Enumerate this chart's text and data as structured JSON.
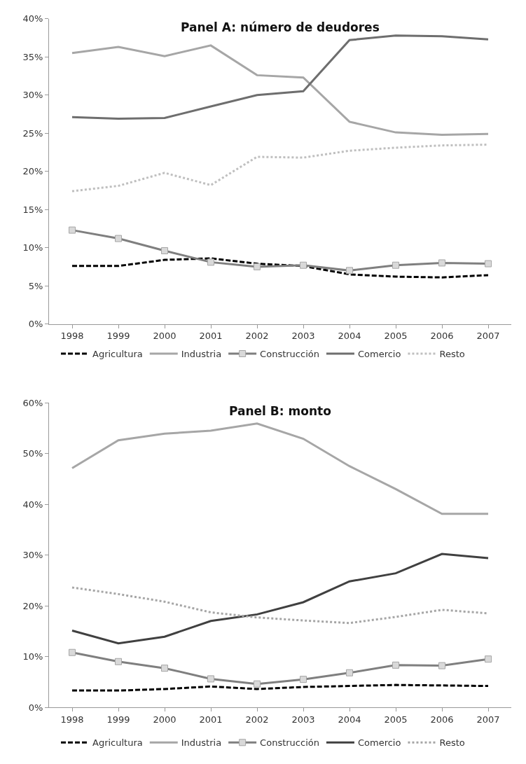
{
  "chart_data": [
    {
      "type": "line",
      "title": "Panel A: número de deudores",
      "categories": [
        "1998",
        "1999",
        "2000",
        "2001",
        "2002",
        "2003",
        "2004",
        "2005",
        "2006",
        "2007"
      ],
      "ylim": [
        0,
        40
      ],
      "yticks": [
        {
          "value": 0,
          "label": "0%"
        },
        {
          "value": 5,
          "label": "5%"
        },
        {
          "value": 10,
          "label": "10%"
        },
        {
          "value": 15,
          "label": "15%"
        },
        {
          "value": 20,
          "label": "20%"
        },
        {
          "value": 25,
          "label": "25%"
        },
        {
          "value": 30,
          "label": "30%"
        },
        {
          "value": 35,
          "label": "35%"
        },
        {
          "value": 40,
          "label": "40%"
        }
      ],
      "legend": "bottom",
      "series": [
        {
          "name": "Agricultura",
          "color": "#000000",
          "line_style": "dashed",
          "values": [
            7.6,
            7.6,
            8.4,
            8.6,
            7.9,
            7.6,
            6.5,
            6.2,
            6.1,
            6.4
          ]
        },
        {
          "name": "Industria",
          "color": "#a6a6a6",
          "line_style": "solid",
          "values": [
            35.5,
            36.3,
            35.1,
            36.5,
            32.6,
            32.3,
            26.5,
            25.1,
            24.8,
            24.9
          ]
        },
        {
          "name": "Construcción",
          "color": "#7f7f7f",
          "line_style": "solid",
          "marker": "square",
          "values": [
            12.3,
            11.2,
            9.6,
            8.1,
            7.5,
            7.7,
            7.0,
            7.7,
            8.0,
            7.9
          ]
        },
        {
          "name": "Comercio",
          "color": "#6e6e6e",
          "line_style": "solid",
          "values": [
            27.1,
            26.9,
            27.0,
            28.5,
            30.0,
            30.5,
            37.2,
            37.8,
            37.7,
            37.3
          ]
        },
        {
          "name": "Resto",
          "color": "#bfbfbf",
          "line_style": "dotted",
          "values": [
            17.4,
            18.1,
            19.8,
            18.2,
            21.9,
            21.8,
            22.7,
            23.1,
            23.4,
            23.5
          ]
        }
      ]
    },
    {
      "type": "line",
      "title": "Panel B: monto",
      "categories": [
        "1998",
        "1999",
        "2000",
        "2001",
        "2002",
        "2003",
        "2004",
        "2005",
        "2006",
        "2007"
      ],
      "ylim": [
        0,
        60
      ],
      "yticks": [
        {
          "value": 0,
          "label": "0%"
        },
        {
          "value": 10,
          "label": "10%"
        },
        {
          "value": 20,
          "label": "20%"
        },
        {
          "value": 30,
          "label": "30%"
        },
        {
          "value": 40,
          "label": "40%"
        },
        {
          "value": 50,
          "label": "50%"
        },
        {
          "value": 60,
          "label": "60%"
        }
      ],
      "legend": "bottom",
      "series": [
        {
          "name": "Agricultura",
          "color": "#000000",
          "line_style": "dashed",
          "values": [
            3.3,
            3.3,
            3.6,
            4.1,
            3.6,
            4.0,
            4.2,
            4.4,
            4.3,
            4.2
          ]
        },
        {
          "name": "Industria",
          "color": "#a6a6a6",
          "line_style": "solid",
          "values": [
            47.1,
            52.6,
            53.9,
            54.5,
            55.9,
            52.9,
            47.5,
            43.0,
            38.1,
            38.1
          ]
        },
        {
          "name": "Construcción",
          "color": "#7f7f7f",
          "line_style": "solid",
          "marker": "square",
          "values": [
            10.8,
            9.0,
            7.7,
            5.6,
            4.6,
            5.5,
            6.8,
            8.3,
            8.2,
            9.5
          ]
        },
        {
          "name": "Comercio",
          "color": "#404040",
          "line_style": "solid",
          "values": [
            15.1,
            12.6,
            13.9,
            17.0,
            18.3,
            20.7,
            24.8,
            26.4,
            30.2,
            29.4
          ]
        },
        {
          "name": "Resto",
          "color": "#a6a6a6",
          "line_style": "dotted",
          "values": [
            23.6,
            22.3,
            20.8,
            18.7,
            17.7,
            17.1,
            16.6,
            17.8,
            19.2,
            18.5
          ]
        }
      ]
    }
  ]
}
